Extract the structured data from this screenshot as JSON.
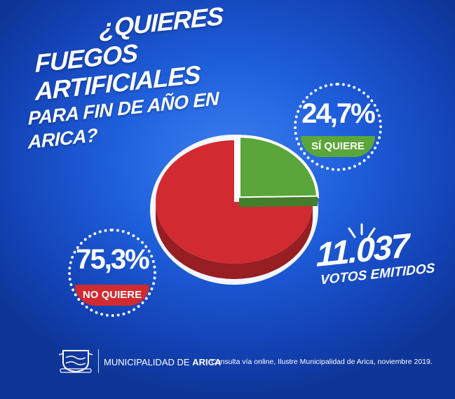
{
  "header": {
    "title_line1": "¿QUIERES",
    "title_line2": "FUEGOS ARTIFICIALES",
    "title_line3": "PARA FIN DE AÑO EN ARICA?"
  },
  "results": {
    "yes_percent": "24,7%",
    "yes_label": "SÍ QUIERE",
    "no_percent": "75,3%",
    "no_label": "NO QUIERE"
  },
  "votes": {
    "count": "11.037",
    "label": "VOTOS EMITIDOS"
  },
  "footer": {
    "municipality_prefix": "MUNICIPALIDAD DE",
    "municipality_name": "ARICA",
    "source": "Consulta vía online, Ilustre Municipalidad de Arica, noviembre 2019."
  },
  "colors": {
    "yes": "#5aa63a",
    "no": "#d22a31",
    "background": "#1f5fdc"
  },
  "icons": [
    "municipal-crest-icon",
    "burst-lines-icon"
  ],
  "chart_data": {
    "type": "pie",
    "categories": [
      "SÍ QUIERE",
      "NO QUIERE"
    ],
    "values": [
      24.7,
      75.3
    ],
    "colors": [
      "#5aa63a",
      "#d22a31"
    ],
    "title": "¿QUIERES FUEGOS ARTIFICIALES PARA FIN DE AÑO EN ARICA?",
    "total_votes": "11.037",
    "exploded_slice": "SÍ QUIERE",
    "style": "3d"
  }
}
